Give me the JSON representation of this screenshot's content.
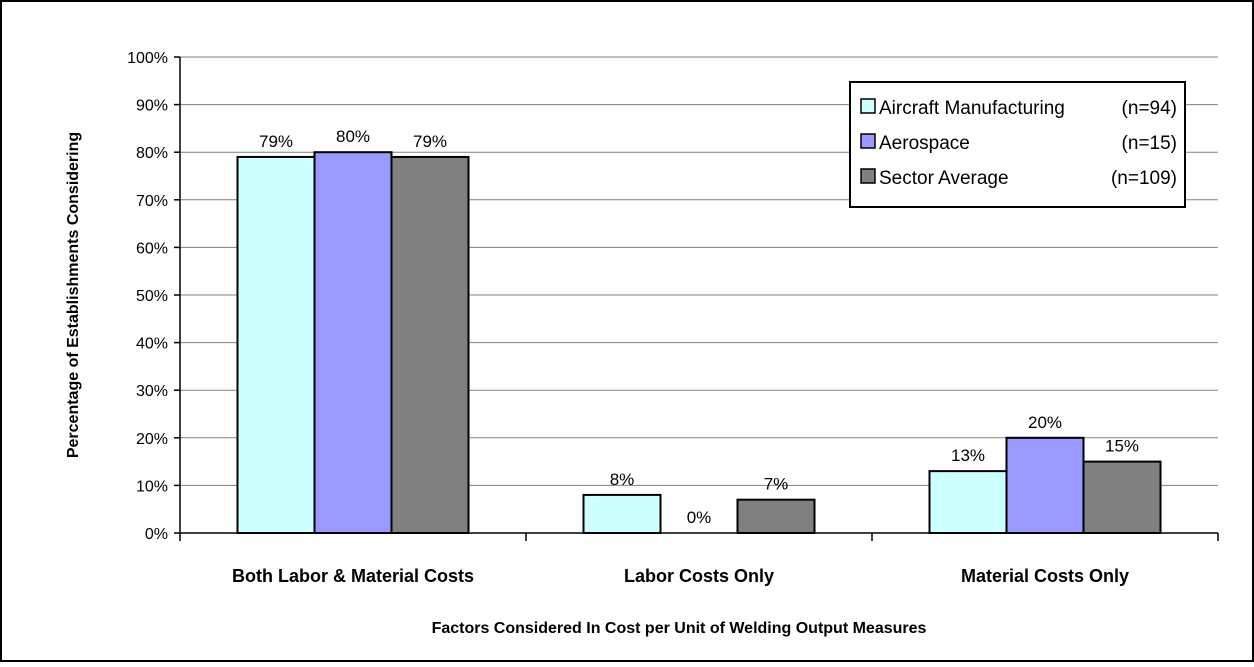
{
  "chart_data": {
    "type": "bar",
    "title": "",
    "xlabel": "Factors Considered In Cost per Unit of Welding Output Measures",
    "ylabel": "Percentage of Establishments Considering",
    "categories": [
      "Both Labor & Material Costs",
      "Labor Costs Only",
      "Material Costs Only"
    ],
    "ylim": [
      0,
      100
    ],
    "yticks": [
      "0%",
      "10%",
      "20%",
      "30%",
      "40%",
      "50%",
      "60%",
      "70%",
      "80%",
      "90%",
      "100%"
    ],
    "grid": true,
    "legend_position": "top-right",
    "series": [
      {
        "name": "Aircraft Manufacturing",
        "n_label": "(n=94)",
        "color": "#ccffff",
        "values": [
          79,
          8,
          13
        ],
        "labels": [
          "79%",
          "8%",
          "13%"
        ]
      },
      {
        "name": "Aerospace",
        "n_label": "(n=15)",
        "color": "#9999ff",
        "values": [
          80,
          0,
          20
        ],
        "labels": [
          "80%",
          "0%",
          "20%"
        ]
      },
      {
        "name": "Sector Average",
        "n_label": "(n=109)",
        "color": "#808080",
        "values": [
          79,
          7,
          15
        ],
        "labels": [
          "79%",
          "7%",
          "15%"
        ]
      }
    ]
  }
}
